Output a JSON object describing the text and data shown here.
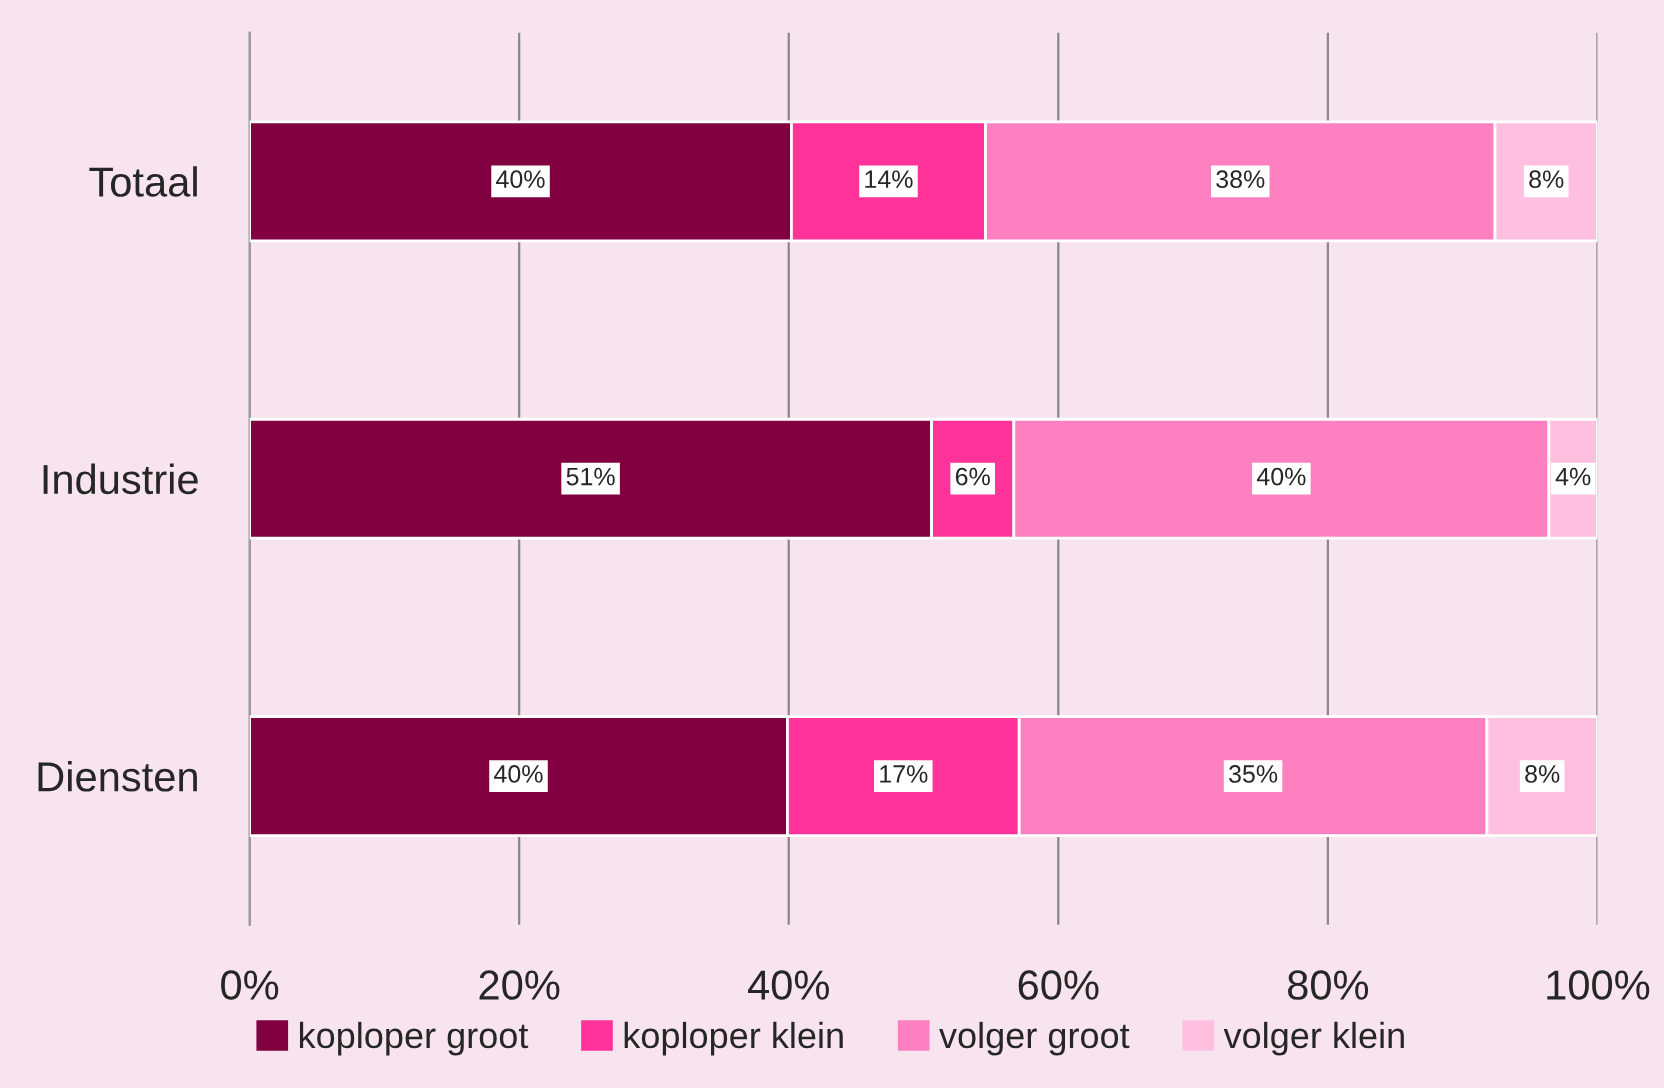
{
  "chart_data": {
    "type": "bar",
    "orientation": "horizontal",
    "stacked": true,
    "categories": [
      "Totaal",
      "Industrie",
      "Diensten"
    ],
    "series": [
      {
        "name": "koploper groot",
        "color": "#800040",
        "values": [
          40.2,
          50.6,
          39.9
        ],
        "value_labels": [
          "40%",
          "51%",
          "40%"
        ]
      },
      {
        "name": "koploper klein",
        "color": "#ff3399",
        "values": [
          14.4,
          6.1,
          17.2
        ],
        "value_labels": [
          "14%",
          "6%",
          "17%"
        ]
      },
      {
        "name": "volger groot",
        "color": "#ff80c0",
        "values": [
          37.8,
          39.7,
          34.7
        ],
        "value_labels": [
          "38%",
          "40%",
          "35%"
        ]
      },
      {
        "name": "volger klein",
        "color": "#ffc0e0",
        "values": [
          7.6,
          3.6,
          8.2
        ],
        "value_labels": [
          "8%",
          "4%",
          "8%"
        ]
      }
    ],
    "xlim": [
      0,
      100
    ],
    "xticks": [
      {
        "value": 0,
        "label": "0%"
      },
      {
        "value": 20,
        "label": "20%"
      },
      {
        "value": 40,
        "label": "40%"
      },
      {
        "value": 60,
        "label": "60%"
      },
      {
        "value": 80,
        "label": "80%"
      },
      {
        "value": 100,
        "label": "100%"
      }
    ],
    "grid": "x",
    "legend": "bottom"
  }
}
